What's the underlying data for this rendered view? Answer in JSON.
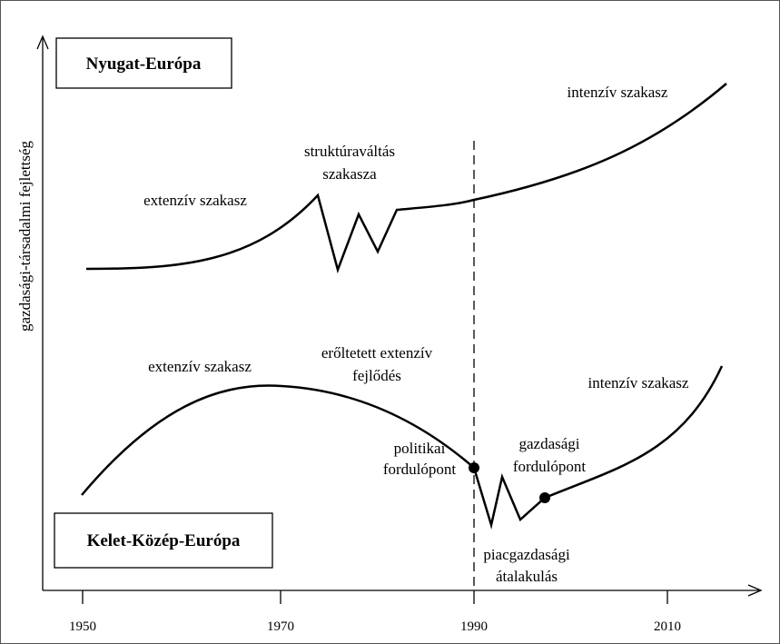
{
  "y_axis": {
    "label": "gazdasági-társadalmi fejlettség"
  },
  "x_axis": {
    "ticks": [
      "1950",
      "1970",
      "1990",
      "2010"
    ]
  },
  "west": {
    "title": "Nyugat-Európa",
    "labels": [
      "extenzív szakasz",
      "struktúraváltás",
      "szakasza",
      "intenzív szakasz"
    ]
  },
  "east": {
    "title": "Kelet-Közép-Európa",
    "labels": [
      "extenzív szakasz",
      "erőltetett extenzív",
      "fejlődés",
      "politikai",
      "fordulópont",
      "gazdasági",
      "fordulópont",
      "piacgazdasági",
      "átalakulás",
      "intenzív szakasz"
    ]
  }
}
